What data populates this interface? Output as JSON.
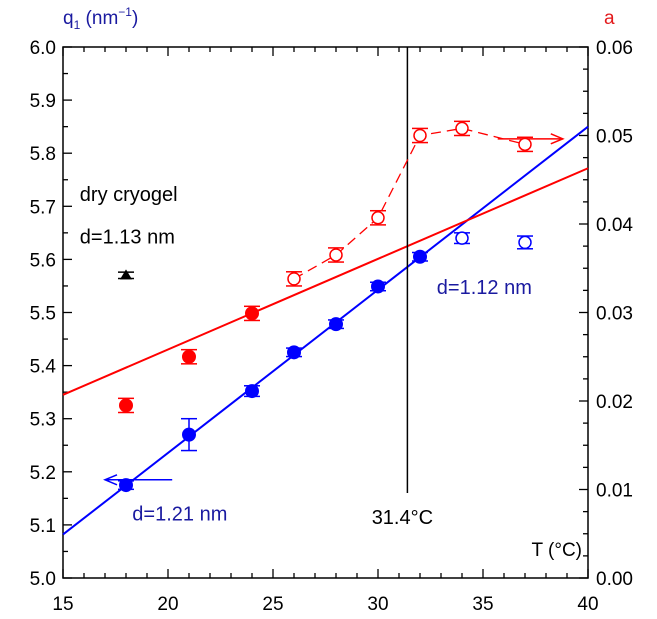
{
  "chart_data": {
    "type": "scatter",
    "title": "",
    "x_axis": {
      "label": "T (°C)",
      "range": [
        15,
        40
      ],
      "major_ticks": [
        15,
        20,
        25,
        30,
        35,
        40
      ],
      "minor_step": 1,
      "tick_labels": [
        "15",
        "20",
        "25",
        "30",
        "35",
        "40"
      ]
    },
    "y_left_axis": {
      "label_base": "q",
      "label_sub": "1",
      "label_unit": " (nm",
      "label_sup": "−1",
      "label_close": ")",
      "color": "#1a1aa0",
      "range": [
        5.0,
        6.0
      ],
      "major_ticks": [
        5.0,
        5.1,
        5.2,
        5.3,
        5.4,
        5.5,
        5.6,
        5.7,
        5.8,
        5.9,
        6.0
      ],
      "tick_labels": [
        "5.0",
        "5.1",
        "5.2",
        "5.3",
        "5.4",
        "5.5",
        "5.6",
        "5.7",
        "5.8",
        "5.9",
        "6.0"
      ]
    },
    "y_right_axis": {
      "label": "a",
      "color": "#e31a1c",
      "range": [
        0.0,
        0.06
      ],
      "major_ticks": [
        0.0,
        0.01,
        0.02,
        0.03,
        0.04,
        0.05,
        0.06
      ],
      "tick_labels": [
        "0.00",
        "0.01",
        "0.02",
        "0.03",
        "0.04",
        "0.05",
        "0.06"
      ]
    },
    "series": [
      {
        "axis": "left",
        "color": "#0000ff",
        "marker": "circle-filled",
        "points": [
          {
            "x": 18,
            "y": 5.175,
            "err": 0.008
          },
          {
            "x": 21,
            "y": 5.27,
            "err": 0.03
          },
          {
            "x": 24,
            "y": 5.352,
            "err": 0.01
          },
          {
            "x": 26,
            "y": 5.425,
            "err": 0.008
          },
          {
            "x": 28,
            "y": 5.478,
            "err": 0.008
          },
          {
            "x": 30,
            "y": 5.549,
            "err": 0.008
          },
          {
            "x": 32,
            "y": 5.605,
            "err": 0.008
          }
        ]
      },
      {
        "axis": "left",
        "color": "#0000ff",
        "marker": "circle-open",
        "points": [
          {
            "x": 34,
            "y": 5.64,
            "err": 0.01
          },
          {
            "x": 37,
            "y": 5.632,
            "err": 0.012
          }
        ]
      },
      {
        "axis": "left",
        "color": "#000000",
        "marker": "triangle-filled",
        "points": [
          {
            "x": 18,
            "y": 5.57,
            "err": 0.006
          }
        ]
      },
      {
        "axis": "right",
        "color": "#ff0000",
        "marker": "circle-filled",
        "points": [
          {
            "x": 18,
            "y": 0.0195,
            "err": 0.0008
          },
          {
            "x": 21,
            "y": 0.025,
            "err": 0.0008
          },
          {
            "x": 24,
            "y": 0.0299,
            "err": 0.0008
          }
        ]
      },
      {
        "axis": "right",
        "color": "#ff0000",
        "marker": "circle-open",
        "connect": "dashed",
        "points": [
          {
            "x": 26,
            "y": 0.0338,
            "err": 0.0008
          },
          {
            "x": 28,
            "y": 0.0365,
            "err": 0.0008
          },
          {
            "x": 30,
            "y": 0.0407,
            "err": 0.0008
          },
          {
            "x": 32,
            "y": 0.05,
            "err": 0.0008
          },
          {
            "x": 34,
            "y": 0.0508,
            "err": 0.0008
          },
          {
            "x": 37,
            "y": 0.049,
            "err": 0.0008
          }
        ]
      }
    ],
    "fit_lines": [
      {
        "axis": "left",
        "color": "#0000ff",
        "from": [
          15,
          5.082
        ],
        "to": [
          40,
          5.85
        ]
      },
      {
        "axis": "right",
        "color": "#ff0000",
        "from": [
          15,
          0.0207
        ],
        "to": [
          40,
          0.0463
        ]
      }
    ],
    "vertical_marker": {
      "x": 31.4,
      "y_from": 5.16,
      "y_to": 6.0,
      "color": "#000000"
    },
    "annotations": [
      {
        "id": "dry-text-1",
        "text": "dry cryogel",
        "color": "#000000",
        "x": 15.8,
        "y": 5.71
      },
      {
        "id": "dry-text-2",
        "text": "d=1.13 nm",
        "color": "#000000",
        "x": 15.8,
        "y": 5.63
      },
      {
        "id": "blue-text-right",
        "text": "d=1.12 nm",
        "color": "#1a1aa0",
        "x": 32.8,
        "y": 5.535
      },
      {
        "id": "blue-text-left",
        "text": "d=1.21 nm",
        "color": "#1a1aa0",
        "x": 18.3,
        "y": 5.108
      },
      {
        "id": "temp-text",
        "text": "31.4°C",
        "color": "#000000",
        "x": 29.7,
        "y": 5.102
      }
    ],
    "arrows": [
      {
        "id": "left-arrow",
        "color": "#0000ff",
        "from": [
          20.2,
          5.185
        ],
        "to": [
          17.0,
          5.185
        ]
      },
      {
        "id": "right-arrow",
        "color": "#ff0000",
        "from": [
          35.7,
          5.827
        ],
        "to": [
          38.8,
          5.827
        ]
      }
    ],
    "grid": false,
    "legend": "none"
  }
}
